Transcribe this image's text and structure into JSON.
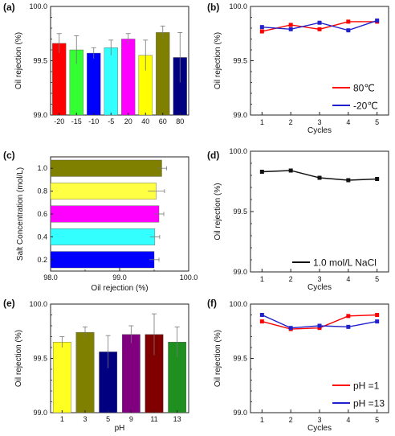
{
  "chart_data": [
    {
      "type": "bar",
      "label": "(a)",
      "orientation": "vertical",
      "categories": [
        "-20",
        "-15",
        "-10",
        "-5",
        "20",
        "40",
        "60",
        "80"
      ],
      "values": [
        99.66,
        99.6,
        99.57,
        99.62,
        99.7,
        99.55,
        99.76,
        99.53
      ],
      "errors": [
        0.09,
        0.13,
        0.05,
        0.07,
        0.05,
        0.14,
        0.06,
        0.23
      ],
      "colors": [
        "#ff0000",
        "#33ff33",
        "#0000ff",
        "#33ffff",
        "#ff00ff",
        "#ffff00",
        "#808000",
        "#000080"
      ],
      "ylabel": "Oil rejection (%)",
      "xlabel": "",
      "ylim": [
        99.0,
        100.0
      ],
      "yticks": [
        "99.0",
        "99.5",
        "100.0"
      ]
    },
    {
      "type": "line",
      "label": "(b)",
      "x": [
        1,
        2,
        3,
        4,
        5
      ],
      "xticks": [
        "1",
        "2",
        "3",
        "4",
        "5"
      ],
      "xlabel": "Cycles",
      "ylabel": "Oil rejection (%)",
      "ylim": [
        99.0,
        100.0
      ],
      "yticks": [
        "99.0",
        "99.5",
        "100.0"
      ],
      "legend_position": "bottom-right",
      "series": [
        {
          "name": "80℃",
          "color": "#ff0000",
          "values": [
            99.77,
            99.83,
            99.79,
            99.86,
            99.86
          ]
        },
        {
          "name": "-20℃",
          "color": "#2222cc",
          "values": [
            99.81,
            99.79,
            99.85,
            99.78,
            99.87
          ]
        }
      ]
    },
    {
      "type": "bar",
      "label": "(c)",
      "orientation": "horizontal",
      "categories": [
        "0.2",
        "0.4",
        "0.6",
        "0.8",
        "1.0"
      ],
      "values": [
        99.5,
        99.51,
        99.57,
        99.53,
        99.61
      ],
      "errors": [
        0.07,
        0.07,
        0.07,
        0.12,
        0.07
      ],
      "colors": [
        "#0000ff",
        "#33ffff",
        "#ff00ff",
        "#ffff44",
        "#808000"
      ],
      "xlabel": "Oil rejection (%)",
      "ylabel": "Salt Concentration (mol/L)",
      "xlim": [
        98.0,
        100.0
      ],
      "xticks": [
        "98.0",
        "99.0",
        "100.0"
      ]
    },
    {
      "type": "line",
      "label": "(d)",
      "x": [
        1,
        2,
        3,
        4,
        5
      ],
      "xticks": [
        "1",
        "2",
        "3",
        "4",
        "5"
      ],
      "xlabel": "Cycles",
      "ylabel": "Oil rejection (%)",
      "ylim": [
        99.0,
        100.0
      ],
      "yticks": [
        "99.0",
        "99.5",
        "100.0"
      ],
      "legend_position": "bottom-right",
      "series": [
        {
          "name": "1.0 mol/L NaCl",
          "color": "#111111",
          "values": [
            99.83,
            99.84,
            99.78,
            99.76,
            99.77
          ]
        }
      ]
    },
    {
      "type": "bar",
      "label": "(e)",
      "orientation": "vertical",
      "categories": [
        "1",
        "3",
        "5",
        "9",
        "11",
        "13"
      ],
      "values": [
        99.65,
        99.74,
        99.56,
        99.72,
        99.72,
        99.65
      ],
      "errors": [
        0.05,
        0.05,
        0.15,
        0.08,
        0.19,
        0.14
      ],
      "colors": [
        "#ffff22",
        "#808000",
        "#000080",
        "#800080",
        "#800000",
        "#1f8f1f"
      ],
      "xlabel": "pH",
      "ylabel": "Oil rejection (%)",
      "ylim": [
        99.0,
        100.0
      ],
      "yticks": [
        "99.0",
        "99.5",
        "100.0"
      ]
    },
    {
      "type": "line",
      "label": "(f)",
      "x": [
        1,
        2,
        3,
        4,
        5
      ],
      "xticks": [
        "1",
        "2",
        "3",
        "4",
        "5"
      ],
      "xlabel": "Cycles",
      "ylabel": "Oil rejection (%)",
      "ylim": [
        99.0,
        100.0
      ],
      "yticks": [
        "99.0",
        "99.5",
        "100.0"
      ],
      "legend_position": "bottom-right",
      "series": [
        {
          "name": "pH =1",
          "color": "#ff0000",
          "values": [
            99.84,
            99.77,
            99.78,
            99.89,
            99.9
          ]
        },
        {
          "name": "pH =13",
          "color": "#2222cc",
          "values": [
            99.9,
            99.78,
            99.8,
            99.79,
            99.84
          ]
        }
      ]
    }
  ]
}
